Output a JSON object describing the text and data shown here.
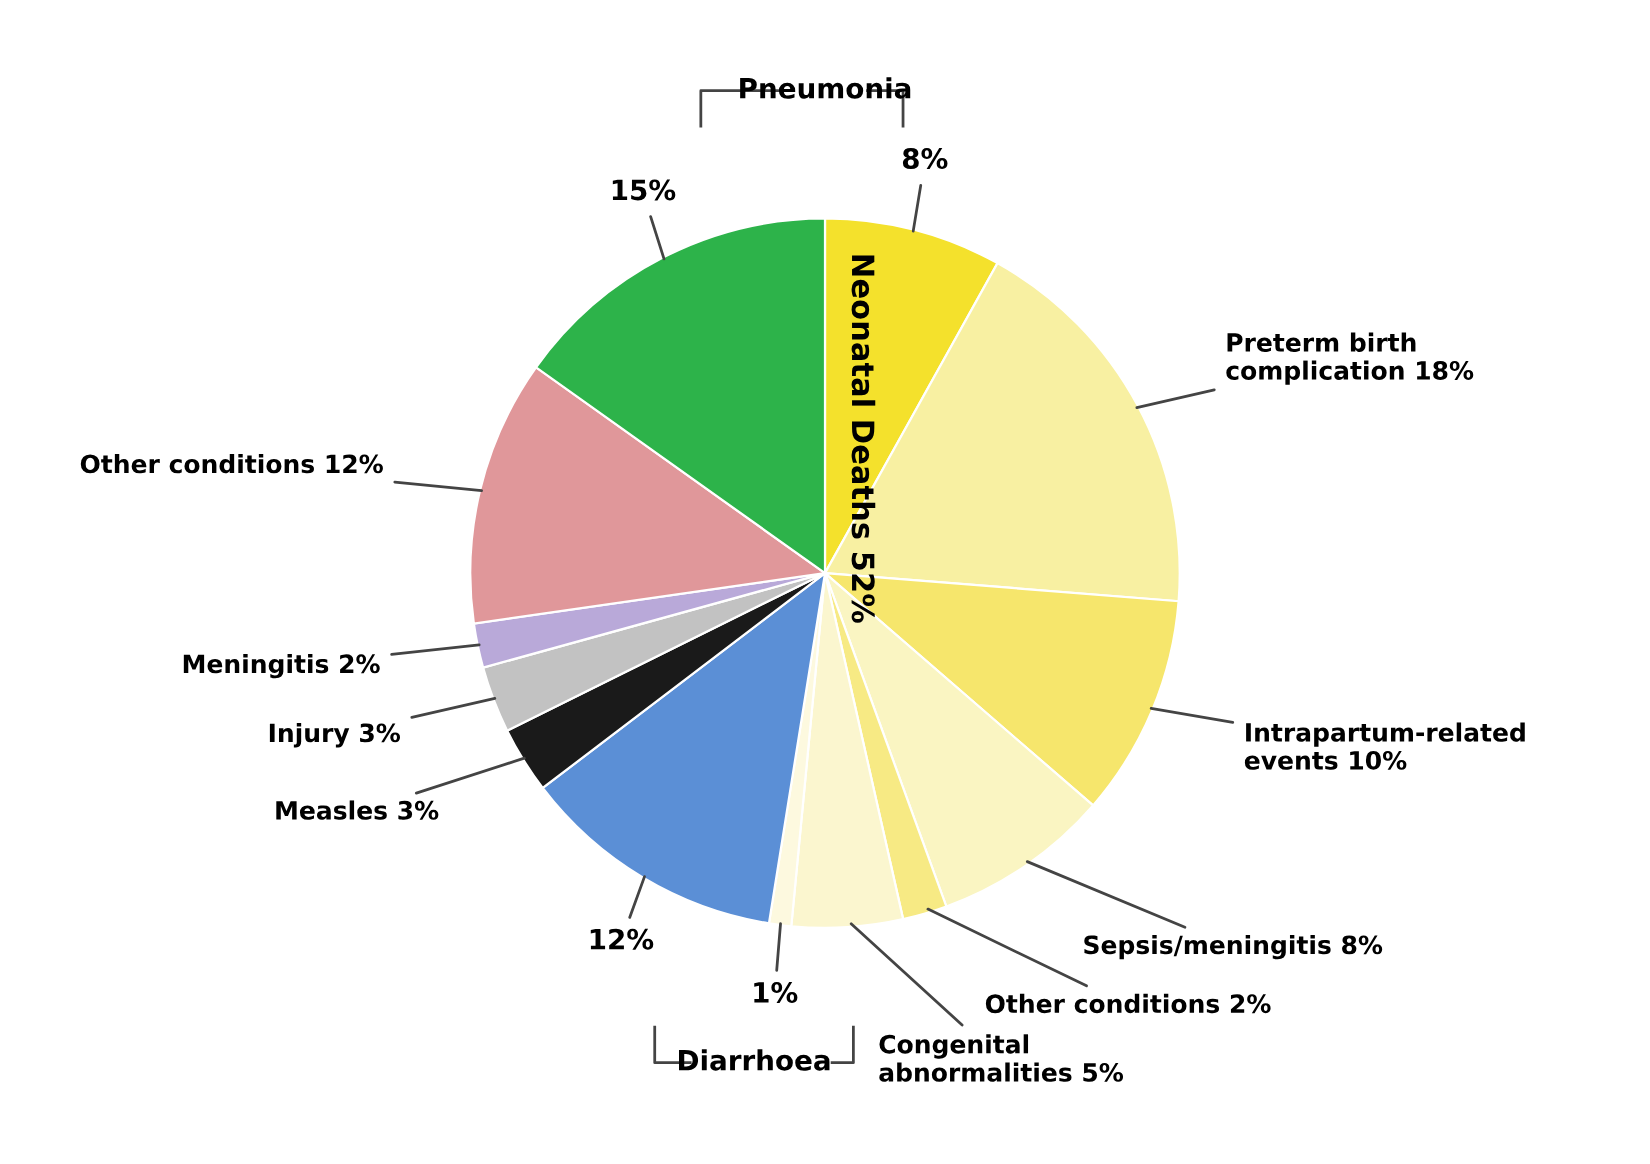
{
  "chart_data": {
    "type": "pie",
    "categories": [
      null,
      "Preterm birth\ncomplication",
      "Intrapartum-related\nevents",
      "Sepsis/meningitis",
      "Other conditions",
      "Congenital\nabnormalities",
      null,
      null,
      "Measles",
      "Injury",
      "Meningitis",
      "Other conditions",
      null
    ],
    "values": [
      8,
      18,
      10,
      8,
      2,
      5,
      1,
      12,
      3,
      3,
      2,
      12,
      15
    ],
    "value_labels": [
      "8%",
      "18%",
      "10%",
      "8%",
      "2%",
      "5%",
      "1%",
      "12%",
      "3%",
      "3%",
      "2%",
      "12%",
      "15%"
    ],
    "colors": [
      "#f4e12c",
      "#f8f0a2",
      "#f6e66c",
      "#faf5c2",
      "#f7ea84",
      "#fbf6cf",
      "#fdf9df",
      "#5b8fd6",
      "#1a1a1a",
      "#c2c2c2",
      "#b9a9d9",
      "#e0979a",
      "#2db34a"
    ],
    "annotations": [
      "Pneumonia",
      "Diarrhoea",
      "Neonatal Deaths 52%"
    ]
  }
}
